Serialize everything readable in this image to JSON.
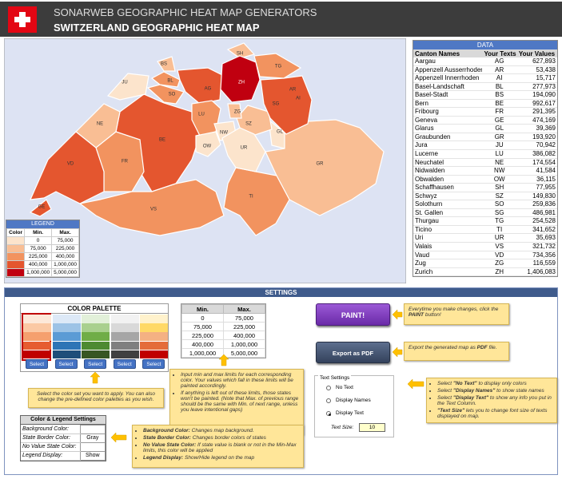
{
  "header": {
    "brand": "SONARWEB GEOGRAPHIC HEAT MAP GENERATORS",
    "title": "SWITZERLAND GEOGRAPHIC HEAT MAP"
  },
  "map": {
    "background": "#dde3f3",
    "border": "#ffffff"
  },
  "legend": {
    "title": "LEGEND",
    "columns": [
      "Color",
      "Min.",
      "Max."
    ],
    "rows": [
      {
        "color": "#fce4cc",
        "min": "0",
        "max": "75,000"
      },
      {
        "color": "#f9be94",
        "min": "75,000",
        "max": "225,000"
      },
      {
        "color": "#f2935f",
        "min": "225,000",
        "max": "400,000"
      },
      {
        "color": "#e4562f",
        "min": "400,000",
        "max": "1,000,000"
      },
      {
        "color": "#c00010",
        "min": "1,000,000",
        "max": "5,000,000"
      }
    ]
  },
  "data": {
    "title": "DATA",
    "columns": [
      "Canton Names",
      "Your Texts",
      "Your Values"
    ],
    "rows": [
      [
        "Aargau",
        "AG",
        "627,893"
      ],
      [
        "Appenzell Ausserrhoden",
        "AR",
        "53,438"
      ],
      [
        "Appenzell Innerrhoden",
        "AI",
        "15,717"
      ],
      [
        "Basel-Landschaft",
        "BL",
        "277,973"
      ],
      [
        "Basel-Stadt",
        "BS",
        "194,090"
      ],
      [
        "Bern",
        "BE",
        "992,617"
      ],
      [
        "Fribourg",
        "FR",
        "291,395"
      ],
      [
        "Geneva",
        "GE",
        "474,169"
      ],
      [
        "Glarus",
        "GL",
        "39,369"
      ],
      [
        "Graubunden",
        "GR",
        "193,920"
      ],
      [
        "Jura",
        "JU",
        "70,942"
      ],
      [
        "Lucerne",
        "LU",
        "386,082"
      ],
      [
        "Neuchatel",
        "NE",
        "174,554"
      ],
      [
        "Nidwalden",
        "NW",
        "41,584"
      ],
      [
        "Obwalden",
        "OW",
        "36,115"
      ],
      [
        "Schaffhausen",
        "SH",
        "77,955"
      ],
      [
        "Schwyz",
        "SZ",
        "149,830"
      ],
      [
        "Solothurn",
        "SO",
        "259,836"
      ],
      [
        "St. Gallen",
        "SG",
        "486,981"
      ],
      [
        "Thurgau",
        "TG",
        "254,528"
      ],
      [
        "Ticino",
        "TI",
        "341,652"
      ],
      [
        "Uri",
        "UR",
        "35,693"
      ],
      [
        "Valais",
        "VS",
        "321,732"
      ],
      [
        "Vaud",
        "VD",
        "734,356"
      ],
      [
        "Zug",
        "ZG",
        "116,559"
      ],
      [
        "Zurich",
        "ZH",
        "1,406,083"
      ]
    ]
  },
  "settings": {
    "title": "SETTINGS",
    "palette": {
      "title": "COLOR PALETTE",
      "button": "Select",
      "columns": [
        [
          "#fde9d9",
          "#fbc9a4",
          "#f5a06e",
          "#e65c30",
          "#c00000"
        ],
        [
          "#dde9f7",
          "#9dc3e6",
          "#5b9bd5",
          "#2e75b6",
          "#1f4e79"
        ],
        [
          "#e2f0d9",
          "#a9d08e",
          "#70ad47",
          "#4d8a32",
          "#375623"
        ],
        [
          "#f2f2f2",
          "#d9d9d9",
          "#a6a6a6",
          "#7f7f7f",
          "#404040"
        ],
        [
          "#fff2cc",
          "#ffd966",
          "#f4b183",
          "#e46c3a",
          "#c00000"
        ]
      ]
    },
    "palette_note": [
      [
        {
          "t": "Select the color set you want to apply. You can also change the pre-defined color palettes as you wish."
        }
      ]
    ],
    "range_note": [
      [
        {
          "t": "Input min and max limits for each corresponding color. Your values which fall in these limits will be painted accordingly."
        }
      ],
      [
        {
          "t": "If anything is left out of these limits, those states won't be painted. (Note that Max. of previous range should be the same with Min. of next range, unless you leave intentional gaps)"
        }
      ]
    ],
    "color_legend": {
      "title": "Color & Legend Settings",
      "rows": [
        [
          "Background Color:",
          ""
        ],
        [
          "State Border Color:",
          "Gray"
        ],
        [
          "No Value State Color:",
          ""
        ],
        [
          "Legend Display:",
          "Show"
        ]
      ]
    },
    "color_legend_note": [
      [
        {
          "t": "Background Color:",
          "b": true
        },
        {
          "t": " Changes map background."
        }
      ],
      [
        {
          "t": "State Border Color:",
          "b": true
        },
        {
          "t": " Changes border colors of states"
        }
      ],
      [
        {
          "t": "No Value State Color:",
          "b": true
        },
        {
          "t": " If state value is blank or not in the Min-Max limits, this color will be applied"
        }
      ],
      [
        {
          "t": "Legend Display:",
          "b": true
        },
        {
          "t": " Show/Hide legend on the map"
        }
      ]
    ],
    "paint": "PAINT!",
    "export": "Export as PDF",
    "paint_note": [
      [
        {
          "t": "Everytime you make changes, click the "
        },
        {
          "t": "PAINT",
          "b": true
        },
        {
          "t": " button!"
        }
      ]
    ],
    "export_note": [
      [
        {
          "t": "Export the generated map as "
        },
        {
          "t": "PDF",
          "b": true
        },
        {
          "t": " file."
        }
      ]
    ],
    "text_settings": {
      "title": "Text Settings",
      "options": [
        "No Text",
        "Display Names",
        "Display Text"
      ],
      "selected": 2,
      "size_label": "Text Size:",
      "size": "10"
    },
    "text_note": [
      [
        {
          "t": "Select "
        },
        {
          "t": "\"No Text\"",
          "b": true
        },
        {
          "t": " to display only colors"
        }
      ],
      [
        {
          "t": "Select "
        },
        {
          "t": "\"Display Names\"",
          "b": true
        },
        {
          "t": " to show state names"
        }
      ],
      [
        {
          "t": "Select "
        },
        {
          "t": "\"Display Text\"",
          "b": true
        },
        {
          "t": " to show any info you put in the Text Column."
        }
      ],
      [
        {
          "t": "\"Text Size\"",
          "b": true
        },
        {
          "t": " lets you to change font size of texts displayed on map."
        }
      ]
    ]
  }
}
